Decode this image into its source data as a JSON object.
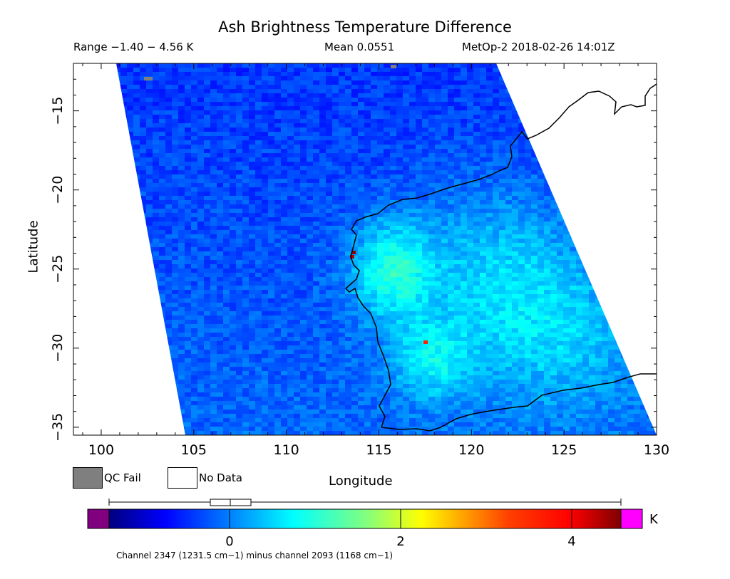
{
  "header": {
    "title": "Ash Brightness Temperature Difference",
    "range": "Range −1.40 − 4.56 K",
    "mean": "Mean 0.0551",
    "satellite": "MetOp-2 2018-02-26 14:01Z"
  },
  "axes": {
    "xlabel": "Longitude",
    "ylabel": "Latitude",
    "x_ticks": [
      "100",
      "105",
      "110",
      "115",
      "120",
      "125",
      "130"
    ],
    "y_ticks": [
      "−15",
      "−20",
      "−25",
      "−30",
      "−35"
    ]
  },
  "legend": {
    "qc_fail": "QC Fail",
    "no_data": "No Data",
    "qc_fail_color": "#7f7f7f",
    "no_data_color": "#ffffff"
  },
  "colorbar": {
    "ticks": [
      "0",
      "2",
      "4"
    ],
    "unit": "K",
    "caption": "Channel 2347 (1231.5 cm−1) minus channel 2093 (1168 cm−1)",
    "underflow_color": "#800080",
    "overflow_color": "#ff00ff",
    "gradient": [
      "#00007f",
      "#0000ff",
      "#0080ff",
      "#00ffff",
      "#80ff80",
      "#ffff00",
      "#ff8000",
      "#ff0000",
      "#7f0000"
    ]
  },
  "map": {
    "lon_range": [
      98.5,
      130
    ],
    "lat_range": [
      -35.5,
      -12.0
    ],
    "hotspot_color_high": "#ffff00",
    "hotspot_color_low": "#0040ff"
  }
}
